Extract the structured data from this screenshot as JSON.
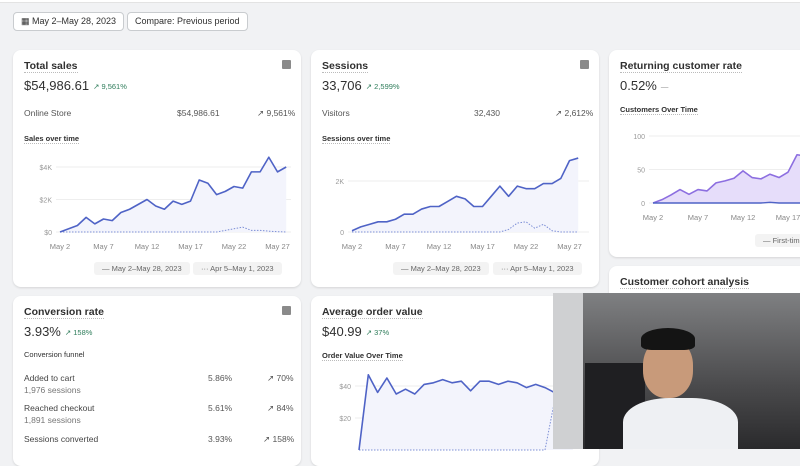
{
  "toolbar": {
    "date_range": "May 2–May 28, 2023",
    "compare": "Compare: Previous period",
    "calendar_icon": "calendar-icon"
  },
  "colors": {
    "accent": "#4f63c6",
    "positive": "#2f7d5b",
    "area": "#e9e3fb",
    "returning_line": "#8c6ee0"
  },
  "total_sales": {
    "title": "Total sales",
    "value": "$54,986.61",
    "delta": "9,561%",
    "channel": "Online Store",
    "channel_value": "$54,986.61",
    "channel_delta": "9,561%",
    "chart_title": "Sales over time",
    "y_ticks": [
      "$4K",
      "$2K",
      "$0"
    ],
    "x_ticks": [
      "May 2",
      "May 7",
      "May 12",
      "May 17",
      "May 22",
      "May 27"
    ],
    "legend": [
      "May 2–May 28, 2023",
      "Apr 5–May 1, 2023"
    ],
    "series": [
      0,
      0.2,
      0.4,
      0.9,
      0.5,
      0.8,
      0.7,
      1.2,
      1.4,
      1.7,
      2.0,
      1.6,
      1.4,
      1.9,
      1.7,
      1.9,
      3.2,
      3.0,
      2.3,
      2.5,
      2.8,
      2.7,
      3.7,
      3.7,
      4.6,
      3.7,
      4.0
    ],
    "previous": [
      0,
      0,
      0,
      0,
      0,
      0,
      0,
      0,
      0,
      0,
      0,
      0,
      0,
      0,
      0,
      0,
      0,
      0,
      0,
      0.1,
      0.2,
      0.3,
      0.1,
      0.1,
      0.05,
      0.02,
      0
    ]
  },
  "sessions": {
    "title": "Sessions",
    "value": "33,706",
    "delta": "2,599%",
    "channel": "Visitors",
    "channel_value": "32,430",
    "channel_delta": "2,612%",
    "chart_title": "Sessions over time",
    "y_ticks": [
      "2K",
      "0"
    ],
    "x_ticks": [
      "May 2",
      "May 7",
      "May 12",
      "May 17",
      "May 22",
      "May 27"
    ],
    "legend": [
      "May 2–May 28, 2023",
      "Apr 5–May 1, 2023"
    ],
    "series": [
      0.05,
      0.2,
      0.3,
      0.4,
      0.4,
      0.5,
      0.7,
      0.7,
      0.9,
      1.0,
      1.0,
      1.2,
      1.4,
      1.3,
      1.0,
      1.0,
      1.4,
      1.8,
      1.4,
      1.8,
      1.7,
      1.7,
      1.9,
      1.9,
      2.1,
      2.8,
      2.9
    ],
    "previous": [
      0,
      0,
      0,
      0,
      0,
      0,
      0,
      0,
      0,
      0,
      0,
      0,
      0,
      0,
      0,
      0,
      0,
      0,
      0.1,
      0.35,
      0.4,
      0.15,
      0.3,
      0.05,
      0,
      0,
      0
    ]
  },
  "returning": {
    "title": "Returning customer rate",
    "value": "0.52%",
    "delta": "—",
    "chart_title": "Customers Over Time",
    "y_ticks": [
      "100",
      "50",
      "0"
    ],
    "x_ticks": [
      "May 2",
      "May 7",
      "May 12",
      "May 17"
    ],
    "legend": [
      "First-tim"
    ],
    "series": [
      0,
      5,
      12,
      20,
      13,
      20,
      18,
      30,
      33,
      37,
      48,
      38,
      36,
      43,
      38,
      46,
      72,
      70,
      70
    ],
    "returning_series": [
      0,
      0,
      0,
      0,
      0,
      0,
      0,
      0,
      0,
      0,
      0,
      0,
      0,
      1,
      0,
      0,
      0,
      0,
      0
    ]
  },
  "cohort": {
    "title": "Customer cohort analysis"
  },
  "conversion": {
    "title": "Conversion rate",
    "value": "3.93%",
    "delta": "158%",
    "funnel_title": "Conversion funnel",
    "steps": [
      {
        "label": "Added to cart",
        "sessions": "1,976 sessions",
        "rate": "5.86%",
        "delta": "70%"
      },
      {
        "label": "Reached checkout",
        "sessions": "1,891 sessions",
        "rate": "5.61%",
        "delta": "84%"
      },
      {
        "label": "Sessions converted",
        "rate": "3.93%",
        "delta": "158%"
      }
    ]
  },
  "aov": {
    "title": "Average order value",
    "value": "$40.99",
    "delta": "37%",
    "chart_title": "Order Value Over Time",
    "y_ticks": [
      "$40",
      "$20"
    ],
    "series": [
      0,
      47,
      36,
      45,
      35,
      38,
      35,
      41,
      42,
      44,
      42,
      43,
      37,
      43,
      43,
      41,
      43,
      42,
      39,
      41,
      39,
      36,
      40,
      38
    ],
    "previous": [
      0,
      0,
      0,
      0,
      0,
      0,
      0,
      0,
      0,
      0,
      0,
      0,
      0,
      0,
      0,
      0,
      0,
      0,
      0,
      0,
      0,
      30,
      30,
      30
    ]
  }
}
